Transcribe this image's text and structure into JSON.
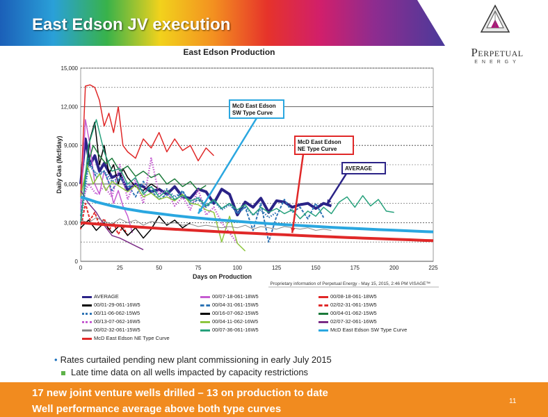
{
  "slide": {
    "title": "East Edson JV execution",
    "logo_name": "Perpetual",
    "logo_sub": "ENERGY",
    "bullet_main": "Rates curtailed pending new plant commissioning in early July 2015",
    "bullet_sub": "Late time data on all wells impacted by capacity restrictions",
    "footer_line1": "17 new joint venture wells drilled – 13 on production to date",
    "footer_line2": "Well performance average above both type curves",
    "page_number": "11",
    "colors": {
      "footer": "#f18b1f",
      "title_text": "#ffffff"
    }
  },
  "chart_data": {
    "type": "line",
    "title": "East Edson Production",
    "xlabel": "Days on Production",
    "ylabel": "Daily Gas (Mcf/day)",
    "xlim": [
      0,
      225
    ],
    "ylim": [
      0,
      15000
    ],
    "x_ticks": [
      "0",
      "25",
      "50",
      "75",
      "100",
      "125",
      "150",
      "175",
      "200",
      "225"
    ],
    "x_tick_values": [
      0,
      25,
      50,
      75,
      100,
      125,
      150,
      175,
      200,
      225
    ],
    "y_ticks": [
      "0",
      "3,000",
      "6,000",
      "9,000",
      "12,000",
      "15,000"
    ],
    "y_tick_values": [
      0,
      3000,
      6000,
      9000,
      12000,
      15000
    ],
    "proprietary_note": "Proprietary information of Perpetual Energy - May 15, 2015, 2:46 PM  VISAGE™",
    "annotations": [
      {
        "text": "McD East Edson SW Type Curve",
        "lines": [
          "McD East Edson",
          "SW Type Curve"
        ],
        "color": "#2aa7e0",
        "target": [
          75,
          3700
        ]
      },
      {
        "text": "McD East Edson NE Type Curve",
        "lines": [
          "McD East Edson",
          "NE Type Curve"
        ],
        "color": "#e02828",
        "target": [
          135,
          2200
        ]
      },
      {
        "text": "AVERAGE",
        "lines": [
          "AVERAGE"
        ],
        "color": "#2b2387",
        "target": [
          157,
          4400
        ]
      }
    ],
    "series": [
      {
        "name": "AVERAGE",
        "color": "#2b2387",
        "dash": "solid",
        "width": 4,
        "x": [
          0,
          3,
          6,
          9,
          12,
          15,
          20,
          25,
          30,
          35,
          40,
          45,
          50,
          55,
          60,
          65,
          70,
          75,
          80,
          85,
          90,
          95,
          100,
          105,
          110,
          115,
          120,
          125,
          130,
          135,
          140,
          145,
          150,
          155,
          160
        ],
        "y": [
          6000,
          9500,
          7500,
          8200,
          7000,
          7600,
          6500,
          6800,
          5500,
          6000,
          5800,
          5400,
          5600,
          5200,
          5800,
          5000,
          4900,
          5600,
          5400,
          4500,
          5600,
          5200,
          3600,
          4600,
          4200,
          4900,
          3800,
          4700,
          4600,
          4200,
          4400,
          4500,
          4100,
          4500,
          4300
        ]
      },
      {
        "name": "00/07-18-061-18W5",
        "color": "#c55cd1",
        "dash": "solid",
        "width": 1.5,
        "x": [
          0,
          3,
          6,
          9,
          12,
          15,
          18,
          21,
          24,
          27,
          30,
          33
        ],
        "y": [
          4000,
          11000,
          9000,
          6000,
          5200,
          7000,
          6100,
          4500,
          5500,
          4300,
          3500,
          2200
        ]
      },
      {
        "name": "00/08-18-061-18W5",
        "color": "#e02828",
        "dash": "solid",
        "width": 1.5,
        "x": [
          0,
          3,
          6,
          9,
          12,
          15,
          18,
          21,
          24,
          27,
          30,
          35,
          40,
          45,
          50,
          55,
          60,
          65,
          70,
          75,
          80,
          85
        ],
        "y": [
          5000,
          13600,
          13700,
          13500,
          12500,
          10500,
          11500,
          10000,
          12000,
          9000,
          8500,
          8000,
          9500,
          8800,
          10000,
          8500,
          9500,
          8600,
          9000,
          7800,
          8800,
          8200
        ]
      },
      {
        "name": "00/01-29-061-16W5",
        "color": "#000000",
        "dash": "solid",
        "width": 1.5,
        "x": [
          0,
          3,
          6,
          9,
          12,
          15,
          18,
          21,
          24,
          27,
          30,
          35,
          40,
          45,
          50
        ],
        "y": [
          3000,
          6500,
          9500,
          10800,
          7500,
          9000,
          6800,
          7500,
          6000,
          7200,
          6500,
          5800,
          5500,
          6000,
          5600
        ]
      },
      {
        "name": "00/04-31-061-15W5",
        "color": "#2e74b5",
        "dash": "dashed",
        "width": 2,
        "x": [
          0,
          5,
          10,
          15,
          20,
          25,
          30,
          35,
          40,
          45,
          50,
          55,
          60,
          65,
          70,
          75,
          80,
          85,
          90,
          95,
          100,
          105,
          110,
          115,
          120,
          125,
          130,
          135,
          140,
          145,
          150,
          155
        ],
        "y": [
          3500,
          8000,
          6500,
          7000,
          5500,
          6500,
          6000,
          5000,
          6200,
          5500,
          4800,
          5200,
          4700,
          5500,
          4400,
          4800,
          4200,
          4700,
          4100,
          4500,
          3700,
          4200,
          2400,
          4500,
          1500,
          3500,
          4800,
          3800,
          4200,
          3300,
          4500,
          3400
        ]
      },
      {
        "name": "02/02-31-061-15W5",
        "color": "#e02828",
        "dash": "dashed",
        "width": 2,
        "x": [
          0,
          3,
          6,
          9,
          12,
          15,
          18,
          21,
          24,
          27,
          30
        ],
        "y": [
          2500,
          4500,
          3200,
          3800,
          2800,
          3300,
          2400,
          3000,
          2100,
          2700,
          2000
        ]
      },
      {
        "name": "00/11-06-062-15W5",
        "color": "#2e74b5",
        "dash": "dotted",
        "width": 2.5,
        "x": [
          0,
          5,
          10,
          15,
          20,
          25,
          30,
          35,
          40,
          45,
          50,
          55,
          60,
          65,
          70,
          75,
          80,
          85,
          90,
          95,
          100,
          105,
          110,
          115,
          120,
          125
        ],
        "y": [
          3000,
          7500,
          6800,
          7000,
          6200,
          6500,
          5800,
          6000,
          5400,
          5800,
          5200,
          5600,
          5000,
          5400,
          4600,
          5000,
          4400,
          4700,
          4000,
          4400,
          3800,
          4200,
          3600,
          4000,
          3400,
          3800
        ]
      },
      {
        "name": "00/16-07-062-15W5",
        "color": "#000000",
        "dash": "solid",
        "width": 1.5,
        "x": [
          0,
          5,
          10,
          15,
          20,
          25,
          30,
          35,
          40,
          45,
          50,
          55,
          60,
          65,
          70
        ],
        "y": [
          2600,
          3200,
          2400,
          3000,
          2200,
          2800,
          2000,
          2600,
          1800,
          2500,
          3500,
          2800,
          3200,
          2600,
          3000
        ]
      },
      {
        "name": "00/04-01-062-15W5",
        "color": "#1b7a3a",
        "dash": "solid",
        "width": 1.5,
        "x": [
          0,
          4,
          8,
          12,
          16,
          20,
          25,
          30,
          35,
          40,
          45,
          50,
          55,
          60,
          65,
          70,
          75,
          80
        ],
        "y": [
          5000,
          7200,
          9000,
          8200,
          7600,
          8000,
          7000,
          7400,
          6600,
          7000,
          6500,
          6800,
          6000,
          6400,
          5800,
          6200,
          5500,
          5900
        ]
      },
      {
        "name": "00/13-07-062-16W5",
        "color": "#c55cd1",
        "dash": "dotted",
        "width": 2.5,
        "x": [
          0,
          5,
          10,
          15,
          20,
          25,
          30,
          35,
          40,
          45,
          50,
          55,
          60,
          65,
          70,
          75,
          80,
          85,
          90,
          95,
          100
        ],
        "y": [
          4500,
          6000,
          5200,
          5800,
          5000,
          7500,
          4800,
          6400,
          4500,
          8000,
          5200,
          5500,
          4300,
          5000,
          4000,
          5600,
          3600,
          4200,
          3000,
          2200,
          1400
        ]
      },
      {
        "name": "00/04-11-062-16W5",
        "color": "#8ec63f",
        "dash": "solid",
        "width": 1.5,
        "x": [
          0,
          4,
          8,
          12,
          16,
          20,
          25,
          30,
          35,
          40,
          45,
          50,
          55,
          60,
          65,
          70,
          75,
          80,
          85,
          90,
          95,
          100,
          105
        ],
        "y": [
          5000,
          7500,
          6000,
          6800,
          5500,
          6200,
          5800,
          5400,
          5900,
          5000,
          5300,
          4800,
          5000,
          4700,
          5200,
          4500,
          4400,
          4000,
          3800,
          1500,
          3500,
          1400,
          800
        ]
      },
      {
        "name": "02/07-32-061-16W5",
        "color": "#7b2c86",
        "dash": "solid",
        "width": 1.5,
        "x": [
          0,
          5,
          10,
          15,
          20,
          25,
          30,
          35,
          40
        ],
        "y": [
          5500,
          4500,
          3800,
          2800,
          2000,
          1800,
          1500,
          1200,
          900
        ]
      },
      {
        "name": "00/02-32-061-15W5",
        "color": "#888888",
        "dash": "solid",
        "width": 1,
        "x": [
          0,
          5,
          10,
          15,
          20,
          25,
          30,
          35,
          40,
          45,
          50,
          55,
          60,
          65,
          70,
          75,
          80,
          85,
          90,
          95,
          100,
          105,
          110,
          115,
          120,
          125,
          130,
          135,
          140,
          145,
          150,
          155,
          160
        ],
        "y": [
          3200,
          3000,
          3400,
          3100,
          2900,
          3300,
          3000,
          3200,
          2800,
          3100,
          3000,
          2900,
          3000,
          2800,
          2900,
          2700,
          2800,
          2700,
          2600,
          2700,
          2600,
          2800,
          2500,
          2700,
          2600,
          2500,
          2700,
          2600,
          2500,
          2600,
          2400,
          2500,
          2400
        ]
      },
      {
        "name": "00/07-36-061-16W5",
        "color": "#27a17c",
        "dash": "solid",
        "width": 1.5,
        "x": [
          0,
          5,
          10,
          15,
          20,
          25,
          30,
          35,
          40,
          45,
          50,
          55,
          60,
          65,
          70,
          75,
          80,
          85,
          90,
          95,
          100,
          105,
          110,
          115,
          120,
          125,
          130,
          135,
          140,
          145,
          150,
          155,
          160,
          165,
          170,
          175,
          180,
          185,
          190,
          195,
          200
        ],
        "y": [
          3000,
          9000,
          11000,
          8500,
          7000,
          7200,
          6000,
          6500,
          5200,
          5800,
          5000,
          5500,
          4800,
          5100,
          4700,
          4900,
          4300,
          4800,
          4100,
          4500,
          4000,
          4400,
          3600,
          4200,
          3800,
          4100,
          3700,
          4000,
          3300,
          3900,
          3500,
          4200,
          3700,
          4600,
          5000,
          4200,
          5100,
          4300,
          4800,
          3900,
          3800
        ]
      },
      {
        "name": "McD East Edson SW Type Curve",
        "color": "#2aa7e0",
        "dash": "solid",
        "width": 4,
        "x": [
          0,
          10,
          20,
          30,
          40,
          50,
          60,
          70,
          80,
          90,
          100,
          110,
          120,
          130,
          140,
          150,
          160,
          170,
          180,
          190,
          200,
          210,
          220,
          225
        ],
        "y": [
          5000,
          4600,
          4300,
          4050,
          3850,
          3700,
          3550,
          3420,
          3300,
          3200,
          3100,
          3010,
          2930,
          2850,
          2780,
          2710,
          2640,
          2580,
          2520,
          2460,
          2410,
          2360,
          2310,
          2290
        ]
      },
      {
        "name": "McD East Edson NE Type Curve",
        "color": "#e02828",
        "dash": "solid",
        "width": 4,
        "x": [
          0,
          10,
          20,
          30,
          40,
          50,
          60,
          70,
          80,
          90,
          100,
          110,
          120,
          130,
          140,
          150,
          160,
          170,
          180,
          190,
          200,
          210,
          220,
          225
        ],
        "y": [
          3000,
          2900,
          2800,
          2720,
          2640,
          2560,
          2490,
          2420,
          2350,
          2290,
          2230,
          2170,
          2110,
          2060,
          2000,
          1950,
          1900,
          1850,
          1800,
          1760,
          1710,
          1670,
          1620,
          1600
        ]
      }
    ]
  }
}
